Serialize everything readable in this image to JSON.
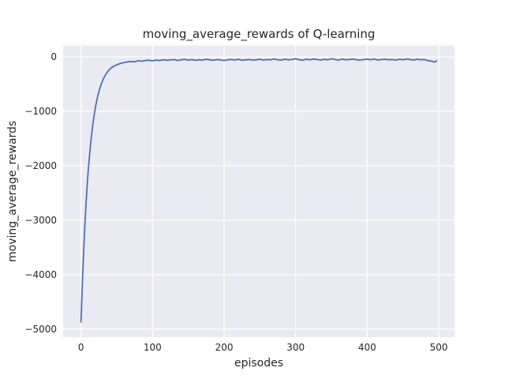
{
  "chart_data": {
    "type": "line",
    "title": "moving_average_rewards of Q-learning",
    "xlabel": "episodes",
    "ylabel": "moving_average_rewards",
    "xlim": [
      -25,
      522
    ],
    "ylim": [
      -5150,
      210
    ],
    "xticks": [
      0,
      100,
      200,
      300,
      400,
      500
    ],
    "xtick_labels": [
      "0",
      "100",
      "200",
      "300",
      "400",
      "500"
    ],
    "yticks": [
      0,
      -1000,
      -2000,
      -3000,
      -4000,
      -5000
    ],
    "ytick_labels": [
      "0",
      "−1000",
      "−2000",
      "−3000",
      "−4000",
      "−5000"
    ],
    "grid": true,
    "legend": "none",
    "line_color": "#4C72B0",
    "line_width": 1.8,
    "axes_bg": "#EAEAF2",
    "grid_color": "#FFFFFF",
    "fig_bg": "#FFFFFF",
    "text_color": "#262626",
    "x": [
      0,
      1,
      2,
      3,
      4,
      5,
      6,
      7,
      8,
      9,
      10,
      12,
      14,
      16,
      18,
      20,
      22,
      24,
      26,
      28,
      30,
      32,
      34,
      36,
      38,
      40,
      42,
      44,
      46,
      48,
      50,
      55,
      60,
      65,
      70,
      75,
      80,
      85,
      90,
      95,
      100,
      105,
      110,
      115,
      120,
      125,
      130,
      135,
      140,
      145,
      150,
      155,
      160,
      165,
      170,
      175,
      180,
      185,
      190,
      195,
      200,
      205,
      210,
      215,
      220,
      225,
      230,
      235,
      240,
      245,
      250,
      255,
      260,
      265,
      270,
      275,
      280,
      285,
      290,
      295,
      300,
      305,
      310,
      315,
      320,
      325,
      330,
      335,
      340,
      345,
      350,
      355,
      360,
      365,
      370,
      375,
      380,
      385,
      390,
      395,
      400,
      405,
      410,
      415,
      420,
      425,
      430,
      435,
      440,
      445,
      450,
      455,
      460,
      465,
      470,
      475,
      480,
      485,
      490,
      495,
      497
    ],
    "y": [
      -4870,
      -4480,
      -4120,
      -3790,
      -3480,
      -3200,
      -2950,
      -2710,
      -2490,
      -2290,
      -2110,
      -1790,
      -1520,
      -1290,
      -1100,
      -940,
      -800,
      -690,
      -590,
      -510,
      -440,
      -385,
      -335,
      -295,
      -260,
      -230,
      -205,
      -185,
      -170,
      -155,
      -145,
      -120,
      -105,
      -92,
      -84,
      -90,
      -72,
      -78,
      -66,
      -60,
      -72,
      -58,
      -66,
      -52,
      -62,
      -56,
      -48,
      -66,
      -52,
      -44,
      -58,
      -48,
      -62,
      -52,
      -58,
      -44,
      -52,
      -62,
      -48,
      -56,
      -66,
      -52,
      -46,
      -58,
      -42,
      -62,
      -52,
      -46,
      -58,
      -52,
      -42,
      -58,
      -48,
      -52,
      -38,
      -52,
      -58,
      -42,
      -52,
      -48,
      -34,
      -52,
      -58,
      -42,
      -52,
      -38,
      -48,
      -58,
      -42,
      -52,
      -34,
      -48,
      -58,
      -42,
      -52,
      -48,
      -38,
      -52,
      -58,
      -48,
      -42,
      -52,
      -38,
      -58,
      -48,
      -42,
      -52,
      -48,
      -58,
      -42,
      -52,
      -38,
      -48,
      -58,
      -42,
      -52,
      -48,
      -68,
      -78,
      -95,
      -70
    ]
  }
}
